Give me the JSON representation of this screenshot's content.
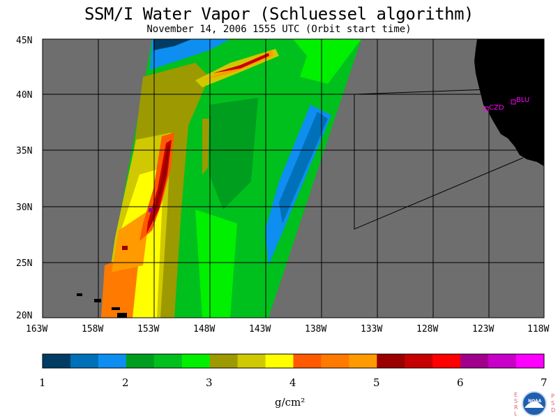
{
  "title": "SSM/I Water Vapor (Schluessel algorithm)",
  "subtitle": "November 14, 2006  1555 UTC  (Orbit start time)",
  "map": {
    "lat_labels": [
      "45N",
      "40N",
      "35N",
      "30N",
      "25N",
      "20N"
    ],
    "lon_labels": [
      "163W",
      "158W",
      "153W",
      "148W",
      "143W",
      "138W",
      "133W",
      "128W",
      "123W",
      "118W"
    ],
    "no_data_color": "#6e6e6e",
    "land_color": "#000000",
    "sites": [
      {
        "label": "CZD",
        "lat": 38.6,
        "lon": -123.2
      },
      {
        "label": "BLU",
        "lat": 39.3,
        "lon": -120.9
      }
    ]
  },
  "colorbar": {
    "tick_labels": [
      "1",
      "2",
      "3",
      "4",
      "5",
      "6",
      "7"
    ],
    "unit": "g/cm²",
    "colors": [
      "#003c64",
      "#0070b8",
      "#0d8ef0",
      "#009e1e",
      "#00c01e",
      "#00f000",
      "#9c9a00",
      "#d0c800",
      "#ffff00",
      "#ff5a00",
      "#ff7a00",
      "#ff9a00",
      "#9a0000",
      "#c60000",
      "#ff0000",
      "#a0008c",
      "#c800c8",
      "#ff00ff"
    ]
  },
  "logo": {
    "left_letters": [
      "E",
      "S",
      "R",
      "L"
    ],
    "right_letters": [
      "P",
      "S",
      "D"
    ],
    "center_text": "NOAA"
  }
}
